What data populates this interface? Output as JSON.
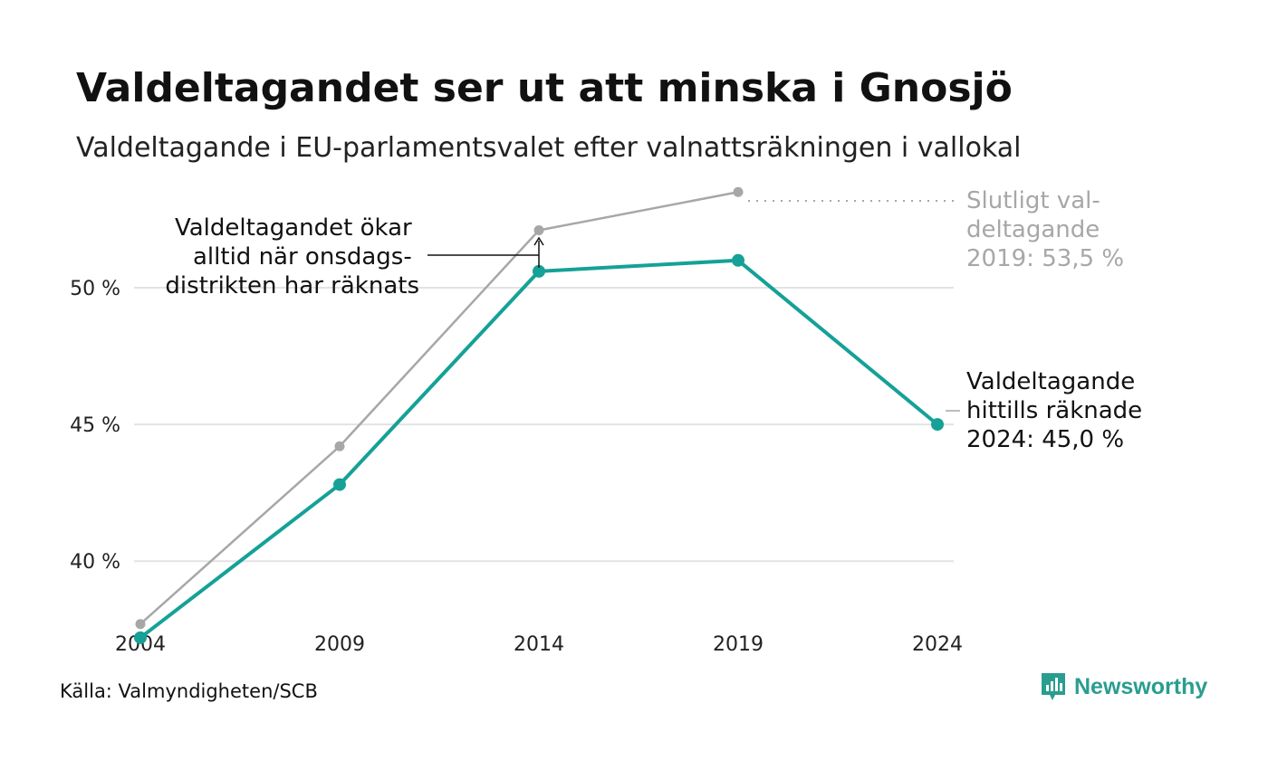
{
  "title": "Valdeltagandet ser ut att minska i Gnosjö",
  "subtitle": "Valdeltagande i EU-parlamentsvalet efter valnattsräkningen i vallokal",
  "source": "Källa: Valmyndigheten/SCB",
  "brand": "Newsworthy",
  "colors": {
    "election_night": "#15a197",
    "final": "#a7a7a7",
    "grid": "#e3e3e3",
    "text": "#111111"
  },
  "chart_data": {
    "type": "line",
    "x": [
      2004,
      2009,
      2014,
      2019,
      2024
    ],
    "x_tick_labels": [
      "2004",
      "2009",
      "2014",
      "2019",
      "2024"
    ],
    "y_ticks": [
      40,
      45,
      50
    ],
    "y_tick_labels": [
      "40 %",
      "45 %",
      "50 %"
    ],
    "ylim": [
      36.5,
      54.5
    ],
    "grid": "horizontal",
    "series": [
      {
        "key": "final",
        "values": [
          37.7,
          44.2,
          52.1,
          53.5,
          null
        ],
        "color": "#a7a7a7"
      },
      {
        "key": "election_night",
        "values": [
          37.2,
          42.8,
          50.6,
          51.0,
          45.0
        ],
        "color": "#15a197"
      }
    ],
    "annotations": {
      "counting_note": [
        "Valdeltagandet ökar",
        "alltid när onsdags-",
        "distrikten har räknats"
      ],
      "final_2019": [
        "Slutligt val-",
        "deltagande",
        "2019: 53,5 %"
      ],
      "current_2024": [
        "Valdeltagande",
        "hittills räknade",
        "2024: 45,0 %"
      ]
    }
  }
}
